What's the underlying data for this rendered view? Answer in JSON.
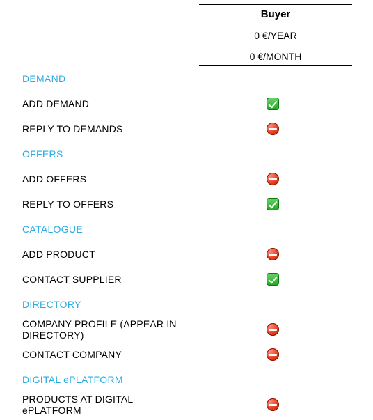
{
  "colors": {
    "section_header": "#29abe2",
    "text": "#000000",
    "background": "#ffffff",
    "border": "#000000",
    "check_fill": "#1fa81f",
    "stop_fill": "#e43a1a"
  },
  "plan": {
    "title": "Buyer",
    "price_year": "0 €/YEAR",
    "price_month": "0 €/MONTH"
  },
  "sections": [
    {
      "title": "DEMAND",
      "rows": [
        {
          "label": "ADD DEMAND",
          "status": "check"
        },
        {
          "label": "REPLY TO DEMANDS",
          "status": "stop"
        }
      ]
    },
    {
      "title": "OFFERS",
      "rows": [
        {
          "label": "ADD OFFERS",
          "status": "stop"
        },
        {
          "label": "REPLY TO OFFERS",
          "status": "check"
        }
      ]
    },
    {
      "title": "CATALOGUE",
      "rows": [
        {
          "label": "ADD PRODUCT",
          "status": "stop"
        },
        {
          "label": "CONTACT SUPPLIER",
          "status": "check"
        }
      ]
    },
    {
      "title": "DIRECTORY",
      "rows": [
        {
          "label": "COMPANY PROFILE (APPEAR  IN DIRECTORY)",
          "status": "stop"
        },
        {
          "label": "CONTACT COMPANY",
          "status": "stop"
        }
      ]
    },
    {
      "title": "DIGITAL ePLATFORM",
      "rows": [
        {
          "label": "PRODUCTS AT DIGITAL ePLATFORM",
          "status": "stop"
        }
      ]
    }
  ]
}
